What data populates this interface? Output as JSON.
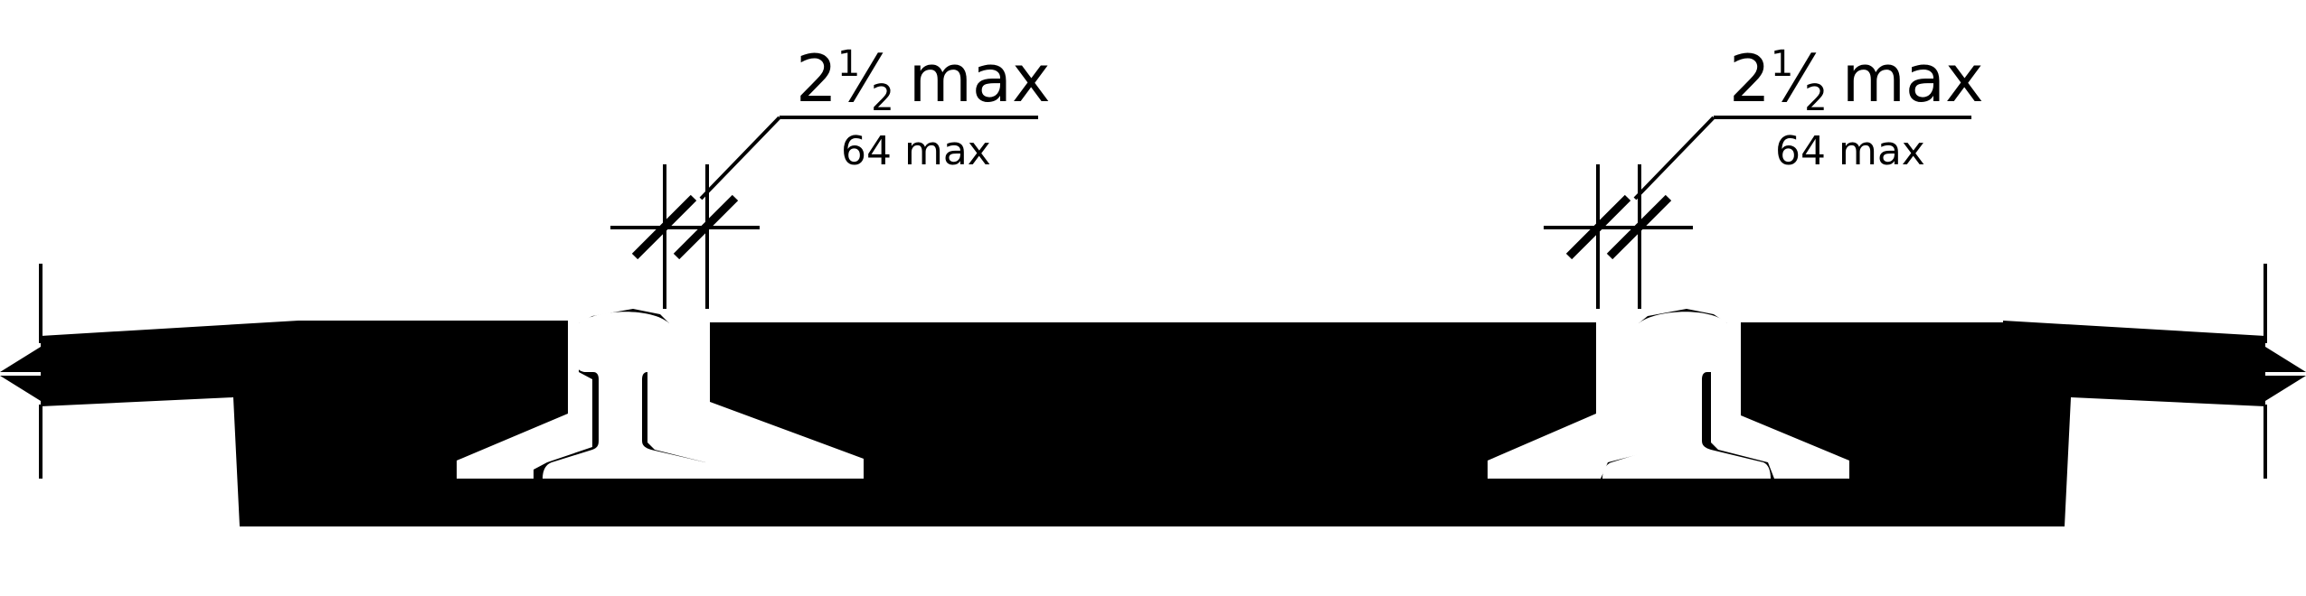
{
  "figure": {
    "left_callout": {
      "whole": "2",
      "num": "1",
      "den": "2",
      "unit": "max",
      "metric": "64 max"
    },
    "right_callout": {
      "whole": "2",
      "num": "1",
      "den": "2",
      "unit": "max",
      "metric": "64 max"
    }
  },
  "colors": {
    "fill": "#000000",
    "background": "#ffffff"
  }
}
